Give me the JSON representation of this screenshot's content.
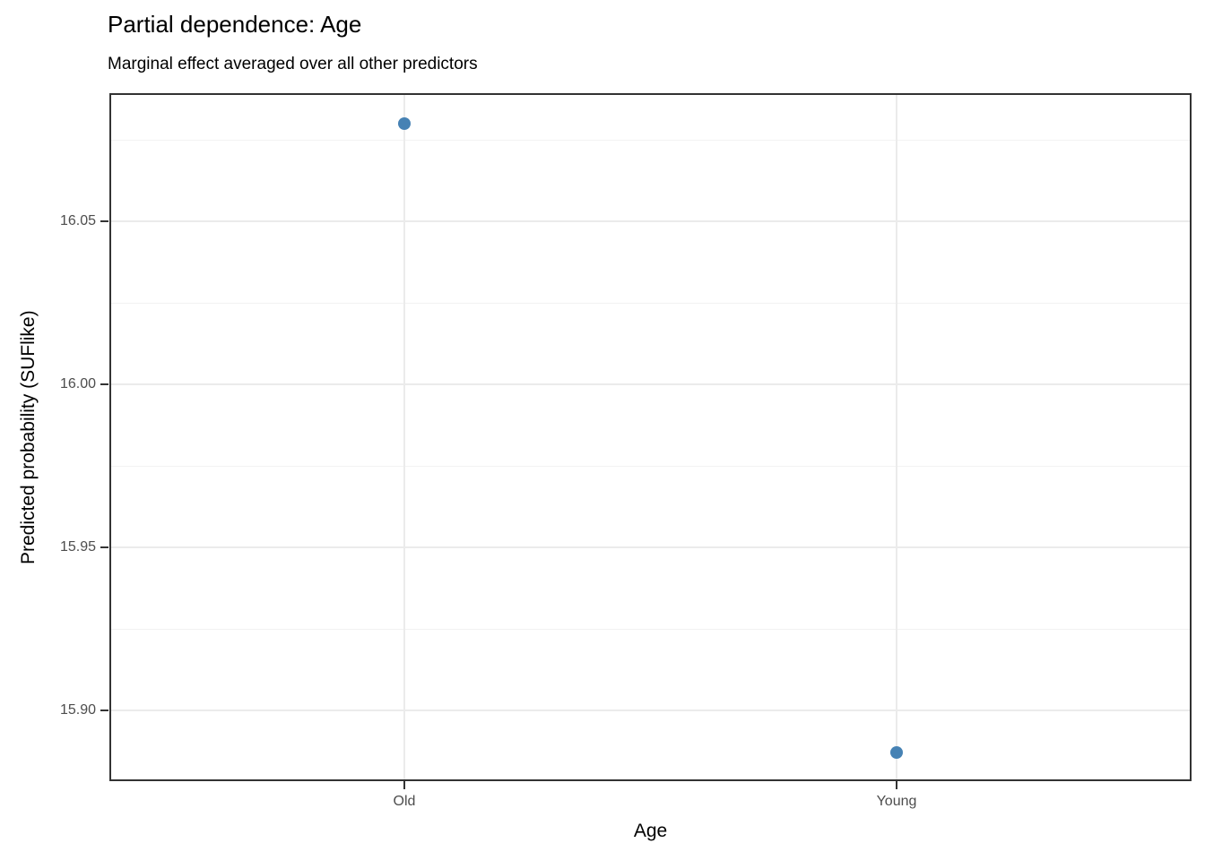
{
  "chart_data": {
    "type": "scatter",
    "title": "Partial dependence: Age",
    "subtitle": "Marginal effect averaged over all other predictors",
    "xlabel": "Age",
    "ylabel": "Predicted probability (SUFlike)",
    "categories": [
      "Old",
      "Young"
    ],
    "values": [
      16.08,
      15.887
    ],
    "ylim": [
      15.8783,
      16.0893
    ],
    "yticks": [
      15.9,
      15.95,
      16.0,
      16.05
    ],
    "ytick_labels": [
      "15.90",
      "15.95",
      "16.00",
      "16.05"
    ],
    "yticks_minor": [
      15.875,
      15.925,
      15.975,
      16.025,
      16.075
    ],
    "grid": true,
    "legend_position": "none",
    "colors": {
      "point": "#4682B4",
      "grid_major": "#EBEBEB",
      "grid_minor": "#F2F2F2",
      "panel_border": "#333333",
      "tick_label": "#4D4D4D",
      "axis_title": "#000000",
      "background": "#FFFFFF"
    }
  }
}
